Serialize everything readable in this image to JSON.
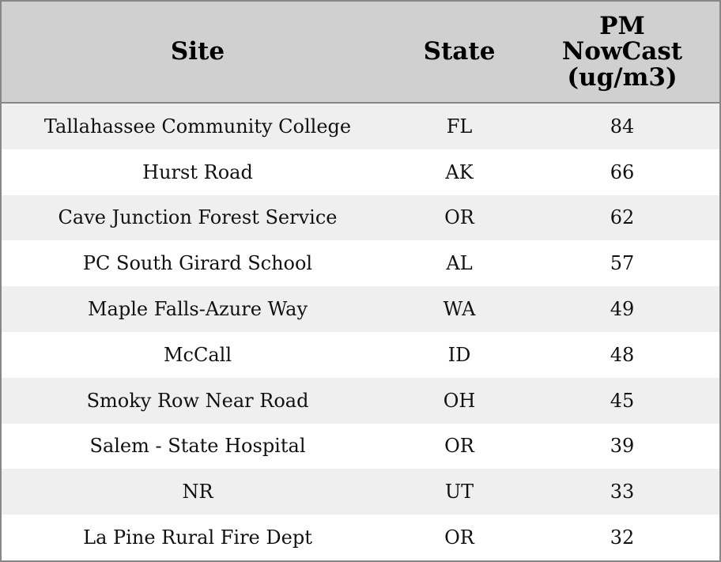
{
  "table": {
    "header": [
      "Site",
      "State",
      "PM NowCast (ug/m3)"
    ],
    "rows": [
      [
        "Tallahassee Community College",
        "FL",
        "84"
      ],
      [
        "Hurst Road",
        "AK",
        "66"
      ],
      [
        "Cave Junction Forest Service",
        "OR",
        "62"
      ],
      [
        "PC South Girard School",
        "AL",
        "57"
      ],
      [
        "Maple Falls-Azure Way",
        "WA",
        "49"
      ],
      [
        "McCall",
        "ID",
        "48"
      ],
      [
        "Smoky Row Near Road",
        "OH",
        "45"
      ],
      [
        "Salem - State Hospital",
        "OR",
        "39"
      ],
      [
        "NR",
        "UT",
        "33"
      ],
      [
        "La Pine Rural Fire Dept",
        "OR",
        "32"
      ]
    ]
  }
}
